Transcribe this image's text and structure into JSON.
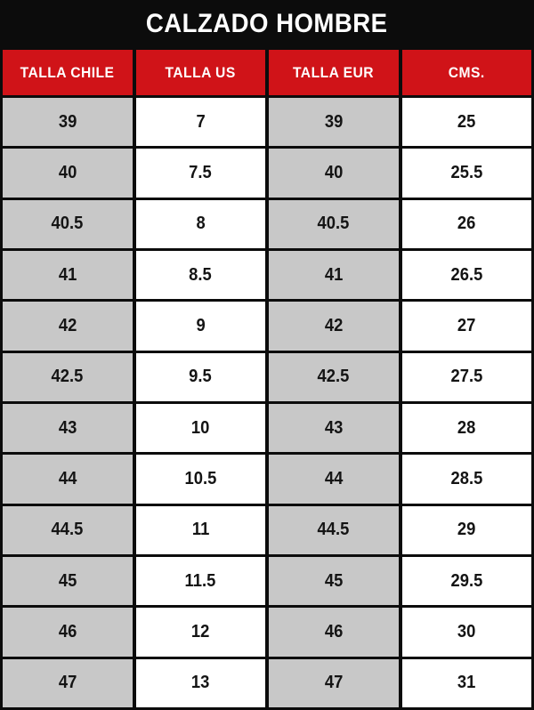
{
  "title": "CALZADO HOMBRE",
  "colors": {
    "background_black": "#0c0c0c",
    "header_red": "#d01318",
    "cell_gray": "#c8c8c8",
    "cell_white": "#ffffff",
    "title_text": "#ffffff",
    "header_text": "#ffffff",
    "data_text": "#141414"
  },
  "chart_data": {
    "type": "table",
    "title": "CALZADO HOMBRE",
    "columns": [
      "TALLA CHILE",
      "TALLA US",
      "TALLA EUR",
      "CMS."
    ],
    "rows": [
      [
        39,
        7,
        39,
        25
      ],
      [
        40,
        7.5,
        40,
        25.5
      ],
      [
        40.5,
        8,
        40.5,
        26
      ],
      [
        41,
        8.5,
        41,
        26.5
      ],
      [
        42,
        9,
        42,
        27
      ],
      [
        42.5,
        9.5,
        42.5,
        27.5
      ],
      [
        43,
        10,
        43,
        28
      ],
      [
        44,
        10.5,
        44,
        28.5
      ],
      [
        44.5,
        11,
        44.5,
        29
      ],
      [
        45,
        11.5,
        45,
        29.5
      ],
      [
        46,
        12,
        46,
        30
      ],
      [
        47,
        13,
        47,
        31
      ]
    ],
    "layout": {
      "column_striping": "columns 1 and 3 gray, columns 2 and 4 white",
      "grid": true
    }
  }
}
